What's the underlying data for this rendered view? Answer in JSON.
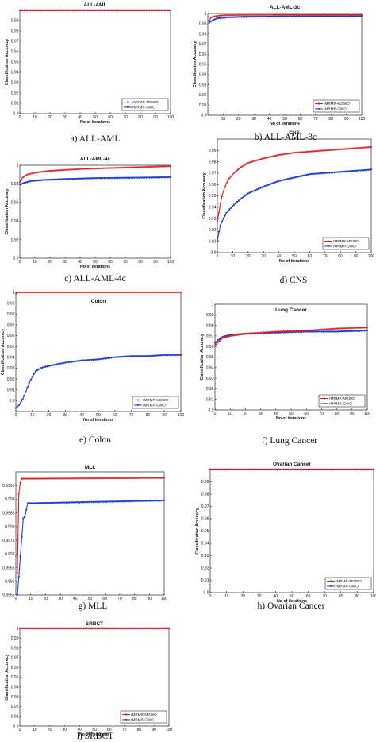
{
  "chart_data": [
    {
      "type": "line",
      "caption": "a) ALL-AML",
      "title": "ALL-AML",
      "xlabel": "No of iterations",
      "ylabel": "Classification Accuracy",
      "xlim": [
        0,
        100
      ],
      "ylim": [
        0.9,
        1.0
      ],
      "xticks": [
        "0",
        "10",
        "20",
        "30",
        "40",
        "50",
        "60",
        "70",
        "80",
        "90",
        "100"
      ],
      "yticks": [
        "0.9",
        "0.91",
        "0.92",
        "0.93",
        "0.94",
        "0.95",
        "0.96",
        "0.97",
        "0.98",
        "0.99"
      ],
      "legend_position": "bottom-right",
      "series": [
        {
          "name": "rMRMR-MGWO",
          "color": "#e02020",
          "marker": "o",
          "points": [
            [
              0,
              1.0
            ],
            [
              100,
              1.0
            ]
          ]
        },
        {
          "name": "rMRMR-GWO",
          "color": "#1f3fd0",
          "marker": "v",
          "points": [
            [
              0,
              1.0
            ],
            [
              100,
              1.0
            ]
          ]
        }
      ]
    },
    {
      "type": "line",
      "caption": "b) ALL-AML-3c",
      "title": "ALL-AML-3c",
      "xlabel": "No of iterations",
      "ylabel": "Classification Accuracy",
      "xlim": [
        0,
        100
      ],
      "ylim": [
        0.9,
        1.0
      ],
      "xticks": [
        "10",
        "20",
        "30",
        "40",
        "50",
        "60",
        "70",
        "80",
        "90",
        "100"
      ],
      "yticks": [
        "0.9",
        "0.91",
        "0.92",
        "0.93",
        "0.94",
        "0.95",
        "0.96",
        "0.97",
        "0.98",
        "0.99",
        "1"
      ],
      "legend_position": "bottom-right",
      "series": [
        {
          "name": "rMRMR-MGWO",
          "color": "#e02020",
          "marker": "o",
          "points": [
            [
              1,
              0.993
            ],
            [
              2,
              0.996
            ],
            [
              4,
              0.997
            ],
            [
              8,
              0.998
            ],
            [
              15,
              0.9985
            ],
            [
              30,
              0.9987
            ],
            [
              60,
              0.9988
            ],
            [
              100,
              0.9988
            ]
          ]
        },
        {
          "name": "rMRMR-GWO",
          "color": "#1f3fd0",
          "marker": "v",
          "points": [
            [
              1,
              0.991
            ],
            [
              3,
              0.993
            ],
            [
              6,
              0.995
            ],
            [
              12,
              0.996
            ],
            [
              25,
              0.9967
            ],
            [
              50,
              0.997
            ],
            [
              100,
              0.9972
            ]
          ]
        }
      ]
    },
    {
      "type": "line",
      "caption": "c) ALL-AML-4c",
      "title": "ALL-AML-4c",
      "xlabel": "No of iterations",
      "ylabel": "Classification Accuracy",
      "xlim": [
        0,
        100
      ],
      "ylim": [
        0.9,
        1.0
      ],
      "xticks": [
        "0",
        "10",
        "20",
        "30",
        "40",
        "50",
        "60",
        "70",
        "80",
        "90",
        "100"
      ],
      "yticks": [
        "0.9",
        "0.92",
        "0.94",
        "0.96",
        "0.98",
        "1"
      ],
      "legend_position": "none",
      "series": [
        {
          "name": "rMRMR-MGWO",
          "color": "#e02020",
          "marker": "o",
          "points": [
            [
              0,
              0.982
            ],
            [
              2,
              0.987
            ],
            [
              5,
              0.99
            ],
            [
              10,
              0.992
            ],
            [
              20,
              0.994
            ],
            [
              40,
              0.996
            ],
            [
              60,
              0.997
            ],
            [
              80,
              0.998
            ],
            [
              100,
              0.999
            ]
          ]
        },
        {
          "name": "rMRMR-GWO",
          "color": "#1f3fd0",
          "marker": "v",
          "points": [
            [
              0,
              0.979
            ],
            [
              3,
              0.981
            ],
            [
              8,
              0.983
            ],
            [
              15,
              0.984
            ],
            [
              30,
              0.985
            ],
            [
              50,
              0.986
            ],
            [
              100,
              0.987
            ]
          ]
        }
      ]
    },
    {
      "type": "line",
      "caption": "d) CNS",
      "title": "CNS",
      "xlabel": "No of iterations",
      "ylabel": "Classification Accuracy",
      "xlim": [
        0,
        100
      ],
      "ylim": [
        0.9,
        1.0
      ],
      "xticks": [
        "0",
        "10",
        "20",
        "30",
        "40",
        "50",
        "60",
        "70",
        "80",
        "90",
        "100"
      ],
      "yticks": [
        "0.9",
        "0.91",
        "0.92",
        "0.93",
        "0.94",
        "0.95",
        "0.96",
        "0.97",
        "0.98",
        "0.99"
      ],
      "legend_position": "bottom-right",
      "series": [
        {
          "name": "rMRMR-MGWO",
          "color": "#e02020",
          "marker": "o",
          "points": [
            [
              0,
              0.928
            ],
            [
              1,
              0.935
            ],
            [
              2,
              0.943
            ],
            [
              3,
              0.95
            ],
            [
              5,
              0.958
            ],
            [
              7,
              0.964
            ],
            [
              10,
              0.969
            ],
            [
              15,
              0.975
            ],
            [
              20,
              0.979
            ],
            [
              30,
              0.983
            ],
            [
              40,
              0.986
            ],
            [
              50,
              0.988
            ],
            [
              60,
              0.989
            ],
            [
              70,
              0.99
            ],
            [
              80,
              0.991
            ],
            [
              90,
              0.992
            ],
            [
              100,
              0.993
            ]
          ]
        },
        {
          "name": "rMRMR-GWO",
          "color": "#1f3fd0",
          "marker": "v",
          "points": [
            [
              0,
              0.91
            ],
            [
              1,
              0.918
            ],
            [
              2,
              0.924
            ],
            [
              4,
              0.93
            ],
            [
              6,
              0.935
            ],
            [
              10,
              0.941
            ],
            [
              15,
              0.947
            ],
            [
              20,
              0.952
            ],
            [
              30,
              0.958
            ],
            [
              40,
              0.963
            ],
            [
              50,
              0.966
            ],
            [
              60,
              0.969
            ],
            [
              70,
              0.97
            ],
            [
              80,
              0.971
            ],
            [
              90,
              0.972
            ],
            [
              100,
              0.973
            ]
          ]
        }
      ]
    },
    {
      "type": "line",
      "caption": "e) Colon",
      "title": "Colon",
      "xlabel": "No of iterations",
      "ylabel": "Classification Accuracy",
      "xlim": [
        0,
        100
      ],
      "ylim": [
        0.89,
        1.0
      ],
      "xticks": [
        "0",
        "10",
        "20",
        "30",
        "40",
        "50",
        "60",
        "70",
        "80",
        "90",
        "100"
      ],
      "yticks": [
        "0.9",
        "0.91",
        "0.92",
        "0.93",
        "0.94",
        "0.95",
        "0.96",
        "0.97",
        "0.98",
        "0.99",
        "1"
      ],
      "legend_position": "bottom-right",
      "series": [
        {
          "name": "rMRMR-MGWO",
          "color": "#e02020",
          "marker": "o",
          "points": [
            [
              0,
              0.999
            ],
            [
              1,
              1.0
            ],
            [
              100,
              1.0
            ]
          ]
        },
        {
          "name": "rMRMR-GWO",
          "color": "#1f3fd0",
          "marker": "v",
          "points": [
            [
              0,
              0.893
            ],
            [
              2,
              0.896
            ],
            [
              4,
              0.901
            ],
            [
              6,
              0.908
            ],
            [
              8,
              0.916
            ],
            [
              10,
              0.922
            ],
            [
              12,
              0.927
            ],
            [
              15,
              0.93
            ],
            [
              20,
              0.932
            ],
            [
              30,
              0.935
            ],
            [
              40,
              0.937
            ],
            [
              50,
              0.938
            ],
            [
              60,
              0.94
            ],
            [
              70,
              0.941
            ],
            [
              80,
              0.941
            ],
            [
              90,
              0.942
            ],
            [
              100,
              0.942
            ]
          ]
        }
      ]
    },
    {
      "type": "line",
      "caption": "f) Lung Cancer",
      "title": "Lung Cancer",
      "xlabel": "No of iterations",
      "ylabel": "Classification Accuracy",
      "xlim": [
        0,
        100
      ],
      "ylim": [
        0.9,
        1.0
      ],
      "xticks": [
        "0",
        "10",
        "20",
        "30",
        "40",
        "50",
        "60",
        "70",
        "80",
        "90",
        "100"
      ],
      "yticks": [
        "0.9",
        "0.91",
        "0.92",
        "0.93",
        "0.94",
        "0.95",
        "0.96",
        "0.97",
        "0.98",
        "0.99",
        "1"
      ],
      "legend_position": "bottom-right",
      "series": [
        {
          "name": "rMRMR-MGWO",
          "color": "#e02020",
          "marker": "o",
          "points": [
            [
              0,
              0.961
            ],
            [
              2,
              0.964
            ],
            [
              5,
              0.968
            ],
            [
              10,
              0.97
            ],
            [
              20,
              0.972
            ],
            [
              40,
              0.974
            ],
            [
              60,
              0.975
            ],
            [
              80,
              0.977
            ],
            [
              100,
              0.978
            ]
          ]
        },
        {
          "name": "rMRMR-GWO",
          "color": "#1f3fd0",
          "marker": "v",
          "points": [
            [
              0,
              0.963
            ],
            [
              2,
              0.966
            ],
            [
              5,
              0.969
            ],
            [
              10,
              0.971
            ],
            [
              20,
              0.972
            ],
            [
              40,
              0.973
            ],
            [
              60,
              0.974
            ],
            [
              80,
              0.974
            ],
            [
              100,
              0.975
            ]
          ]
        }
      ]
    },
    {
      "type": "line",
      "caption": "g) MLL",
      "title": "MLL",
      "xlabel": "",
      "ylabel": "",
      "xlim": [
        0,
        100
      ],
      "ylim": [
        0.9955,
        1.0
      ],
      "xticks": [
        "0",
        "10",
        "20",
        "30",
        "40",
        "50",
        "60",
        "70",
        "80",
        "90",
        "100"
      ],
      "yticks": [
        "0.9955",
        "0.996",
        "0.9965",
        "0.997",
        "0.9975",
        "0.998",
        "0.9985",
        "0.999",
        "0.9995"
      ],
      "legend_position": "none",
      "series": [
        {
          "name": "rMRMR-MGWO",
          "color": "#e02020",
          "marker": "o",
          "points": [
            [
              1,
              0.9963
            ],
            [
              2,
              0.9992
            ],
            [
              3,
              0.9996
            ],
            [
              4,
              0.99975
            ],
            [
              100,
              0.99978
            ]
          ]
        },
        {
          "name": "rMRMR-GWO",
          "color": "#1f3fd0",
          "marker": "v",
          "points": [
            [
              1,
              0.9955
            ],
            [
              2,
              0.99615
            ],
            [
              3,
              0.9969
            ],
            [
              4,
              0.9976
            ],
            [
              5,
              0.9983
            ],
            [
              6,
              0.99835
            ],
            [
              8,
              0.99885
            ],
            [
              12,
              0.99885
            ],
            [
              100,
              0.99895
            ]
          ]
        }
      ]
    },
    {
      "type": "line",
      "caption": "h) Ovarian Cancer",
      "title": "Ovarian Cancer",
      "xlabel": "No of iterations",
      "ylabel": "Classification Accuracy",
      "xlim": [
        0,
        100
      ],
      "ylim": [
        0.9,
        1.0
      ],
      "xticks": [
        "0",
        "10",
        "20",
        "30",
        "40",
        "50",
        "60",
        "70",
        "80",
        "90",
        "100"
      ],
      "yticks": [
        "0.9",
        "0.91",
        "0.92",
        "0.93",
        "0.94",
        "0.95",
        "0.96",
        "0.97",
        "0.98",
        "0.99"
      ],
      "legend_position": "bottom-right",
      "series": [
        {
          "name": "rMRMR-MGWO",
          "color": "#e02020",
          "marker": "o",
          "points": [
            [
              0,
              1.0
            ],
            [
              100,
              1.0
            ]
          ]
        },
        {
          "name": "rMRMR-GWO",
          "color": "#1f3fd0",
          "marker": "v",
          "points": [
            [
              0,
              1.0
            ],
            [
              100,
              1.0
            ]
          ]
        }
      ]
    },
    {
      "type": "line",
      "caption": "l) SRBCT",
      "title": "SRBCT",
      "xlabel": "No of iterations",
      "ylabel": "Classification Accuracy",
      "xlim": [
        0,
        100
      ],
      "ylim": [
        0.9,
        1.0
      ],
      "xticks": [
        "0",
        "10",
        "20",
        "30",
        "40",
        "50",
        "60",
        "70",
        "80",
        "90",
        "100"
      ],
      "yticks": [
        "0.9",
        "0.91",
        "0.92",
        "0.93",
        "0.94",
        "0.95",
        "0.96",
        "0.97",
        "0.98",
        "0.99",
        "1"
      ],
      "legend_position": "bottom-right",
      "series": [
        {
          "name": "rMRMR-MGWO",
          "color": "#e02020",
          "marker": "o",
          "points": [
            [
              0,
              1.0
            ],
            [
              100,
              1.0
            ]
          ]
        },
        {
          "name": "rMRMR-GWO",
          "color": "#1f3fd0",
          "marker": "v",
          "points": [
            [
              0,
              1.0
            ],
            [
              100,
              1.0
            ]
          ]
        }
      ]
    }
  ]
}
